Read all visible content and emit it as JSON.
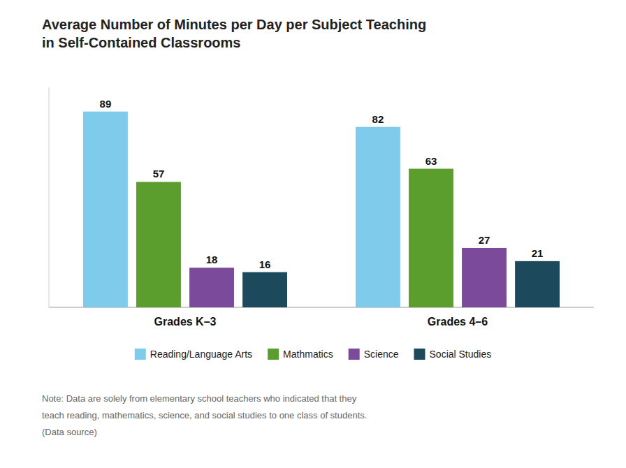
{
  "chart_data": {
    "type": "bar",
    "title": "Average Number of Minutes per Day per Subject Teaching\nin Self-Contained Classrooms",
    "categories": [
      "Grades K–3",
      "Grades 4–6"
    ],
    "series": [
      {
        "name": "Reading/Language Arts",
        "color": "#7ecbec",
        "values": [
          89,
          82
        ]
      },
      {
        "name": "Mathmatics",
        "color": "#5c9e2e",
        "values": [
          57,
          63
        ]
      },
      {
        "name": "Science",
        "color": "#7b4a9b",
        "values": [
          18,
          27
        ]
      },
      {
        "name": "Social Studies",
        "color": "#1c4a5c",
        "values": [
          16,
          21
        ]
      }
    ],
    "ylim": [
      0,
      100
    ],
    "grid": false,
    "legend": "bottom",
    "data_labels": true,
    "tick_labels": "x",
    "annotations": [
      "Note: Data are solely from elementary school teachers who indicated that they",
      "teach reading, mathematics, science, and social studies to one class of students.",
      "(Data source)"
    ]
  }
}
